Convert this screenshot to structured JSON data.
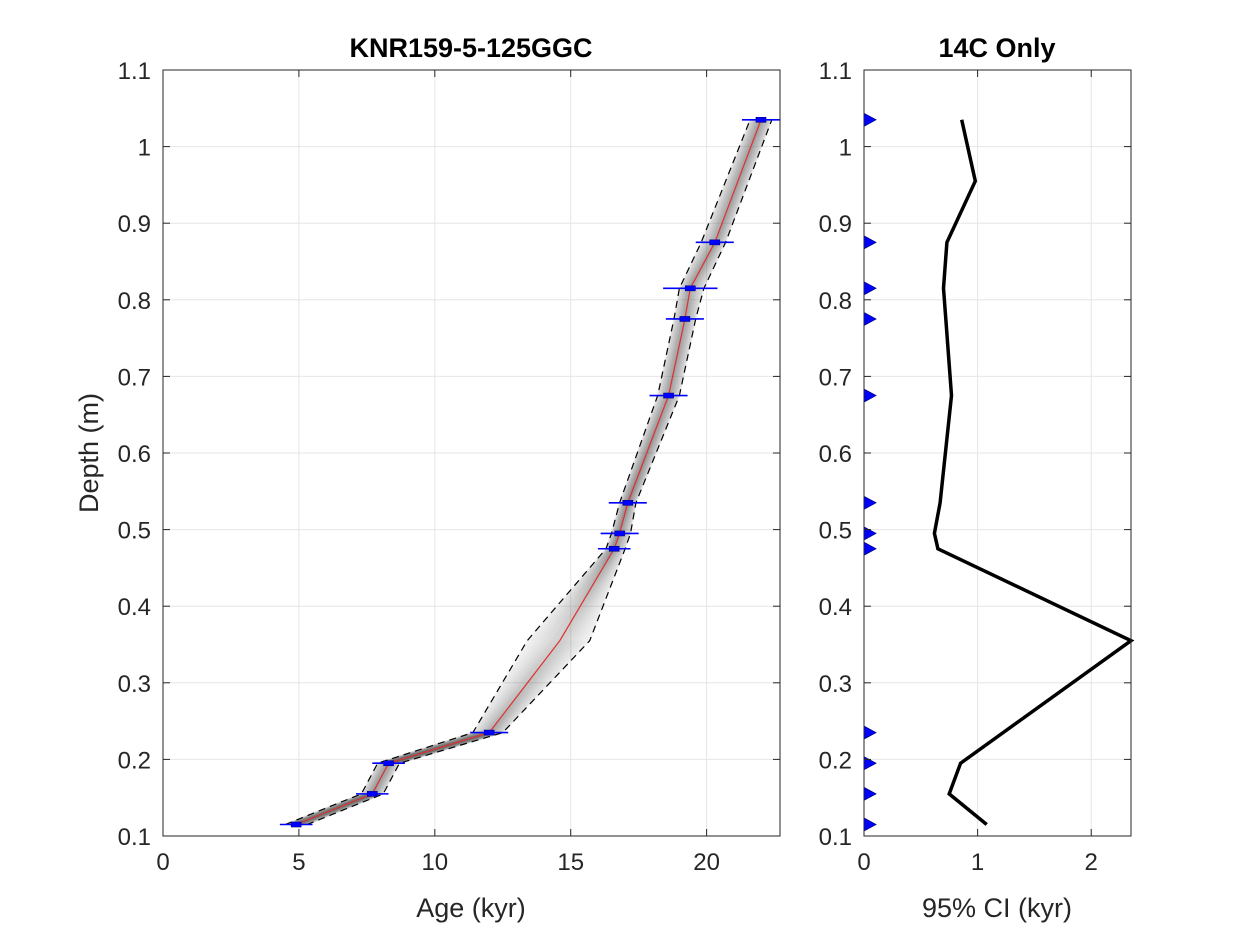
{
  "chart_data": [
    {
      "type": "line",
      "title": "KNR159-5-125GGC",
      "xlabel": "Age (kyr)",
      "ylabel": "Depth (m)",
      "xlim": [
        0,
        22.7
      ],
      "ylim": [
        0.1,
        1.1
      ],
      "xticks": [
        "0",
        "5",
        "10",
        "15",
        "20"
      ],
      "yticks": [
        "0.1",
        "0.2",
        "0.3",
        "0.4",
        "0.5",
        "0.6",
        "0.7",
        "0.8",
        "0.9",
        "1",
        "1.1"
      ],
      "grid": true,
      "median_line": {
        "color": "#e03030",
        "points": [
          [
            4.9,
            0.115
          ],
          [
            7.7,
            0.155
          ],
          [
            8.3,
            0.195
          ],
          [
            12.0,
            0.235
          ],
          [
            14.6,
            0.355
          ],
          [
            16.6,
            0.475
          ],
          [
            16.8,
            0.495
          ],
          [
            17.1,
            0.535
          ],
          [
            18.6,
            0.675
          ],
          [
            19.2,
            0.775
          ],
          [
            19.4,
            0.815
          ],
          [
            20.3,
            0.875
          ],
          [
            22.0,
            1.035
          ]
        ]
      },
      "lower_bound": {
        "style": "dashed",
        "points": [
          [
            4.5,
            0.115
          ],
          [
            7.3,
            0.155
          ],
          [
            7.9,
            0.195
          ],
          [
            11.4,
            0.235
          ],
          [
            13.4,
            0.355
          ],
          [
            16.3,
            0.475
          ],
          [
            16.5,
            0.495
          ],
          [
            16.8,
            0.535
          ],
          [
            18.2,
            0.675
          ],
          [
            18.8,
            0.775
          ],
          [
            19.0,
            0.815
          ],
          [
            19.8,
            0.875
          ],
          [
            21.6,
            1.035
          ]
        ]
      },
      "upper_bound": {
        "style": "dashed",
        "points": [
          [
            5.3,
            0.115
          ],
          [
            8.1,
            0.155
          ],
          [
            8.7,
            0.195
          ],
          [
            12.5,
            0.235
          ],
          [
            15.7,
            0.355
          ],
          [
            17.0,
            0.475
          ],
          [
            17.2,
            0.495
          ],
          [
            17.4,
            0.535
          ],
          [
            19.0,
            0.675
          ],
          [
            19.6,
            0.775
          ],
          [
            19.9,
            0.815
          ],
          [
            20.7,
            0.875
          ],
          [
            22.4,
            1.035
          ]
        ]
      },
      "dates": {
        "color": "#0000ff",
        "points": [
          {
            "age": 4.9,
            "depth": 0.115,
            "err": 0.6
          },
          {
            "age": 7.7,
            "depth": 0.155,
            "err": 0.6
          },
          {
            "age": 8.3,
            "depth": 0.195,
            "err": 0.6
          },
          {
            "age": 12.0,
            "depth": 0.235,
            "err": 0.7
          },
          {
            "age": 16.6,
            "depth": 0.475,
            "err": 0.6
          },
          {
            "age": 16.8,
            "depth": 0.495,
            "err": 0.7
          },
          {
            "age": 17.1,
            "depth": 0.535,
            "err": 0.7
          },
          {
            "age": 18.6,
            "depth": 0.675,
            "err": 0.7
          },
          {
            "age": 19.2,
            "depth": 0.775,
            "err": 0.7
          },
          {
            "age": 19.4,
            "depth": 0.815,
            "err": 1.0
          },
          {
            "age": 20.3,
            "depth": 0.875,
            "err": 0.7
          },
          {
            "age": 22.0,
            "depth": 1.035,
            "err": 0.7
          }
        ]
      }
    },
    {
      "type": "line",
      "title": "14C Only",
      "xlabel": "95% CI (kyr)",
      "ylabel": "",
      "xlim": [
        0,
        2.35
      ],
      "ylim": [
        0.1,
        1.1
      ],
      "xticks": [
        "0",
        "1",
        "2"
      ],
      "yticks": [
        "0.1",
        "0.2",
        "0.3",
        "0.4",
        "0.5",
        "0.6",
        "0.7",
        "0.8",
        "0.9",
        "1",
        "1.1"
      ],
      "grid": true,
      "ci_line": {
        "color": "#000000",
        "points": [
          [
            1.08,
            0.115
          ],
          [
            0.75,
            0.155
          ],
          [
            0.85,
            0.195
          ],
          [
            2.35,
            0.355
          ],
          [
            0.65,
            0.475
          ],
          [
            0.62,
            0.495
          ],
          [
            0.67,
            0.535
          ],
          [
            0.77,
            0.675
          ],
          [
            0.72,
            0.775
          ],
          [
            0.7,
            0.815
          ],
          [
            0.73,
            0.875
          ],
          [
            0.98,
            0.955
          ],
          [
            0.86,
            1.035
          ]
        ]
      },
      "date_markers": {
        "color": "#0000ff",
        "depths": [
          0.115,
          0.155,
          0.195,
          0.235,
          0.475,
          0.495,
          0.535,
          0.675,
          0.775,
          0.815,
          0.875,
          1.035
        ]
      }
    }
  ]
}
